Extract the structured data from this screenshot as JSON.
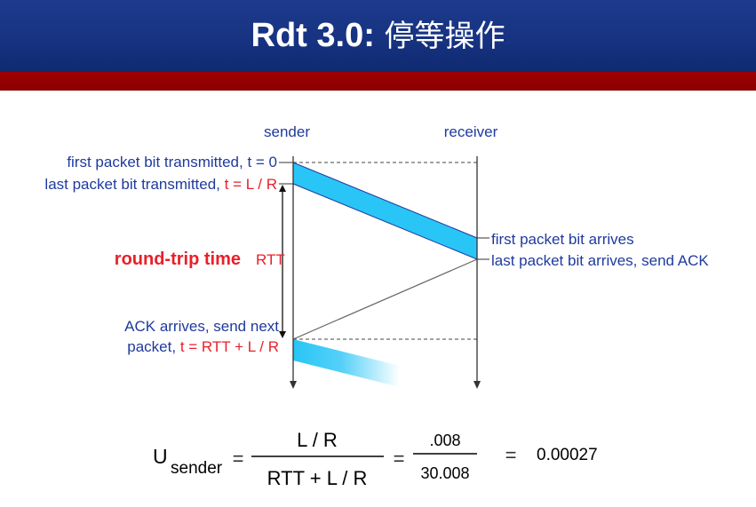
{
  "slide": {
    "title_main": "Rdt 3.0:",
    "title_sub": "停等操作"
  },
  "diagram": {
    "sender_label": "sender",
    "receiver_label": "receiver",
    "first_bit_sent": "first packet bit transmitted, t = 0",
    "last_bit_sent_prefix": "last packet bit transmitted, ",
    "last_bit_sent_time": "t = L / R",
    "rtt_caption": "round-trip time",
    "rtt_label": "RTT",
    "first_bit_arrives": "first packet bit arrives",
    "last_bit_arrives": "last packet bit arrives, send ACK",
    "ack_line1": "ACK arrives, send next",
    "ack_line2_prefix": "packet, ",
    "ack_line2_time": "t = RTT + L / R"
  },
  "formula": {
    "u": "U",
    "subscript": "sender",
    "eq1": "=",
    "num1": "L / R",
    "den1": "RTT + L / R",
    "eq2": "=",
    "num2": ".008",
    "den2": "30.008",
    "eq3": "=",
    "result": "0.00027"
  },
  "colors": {
    "blue_text": "#1f3a9e",
    "red_text": "#e8202a",
    "packet_fill": "#29c5f6",
    "header": "#1a3687",
    "stripe": "#990000"
  }
}
